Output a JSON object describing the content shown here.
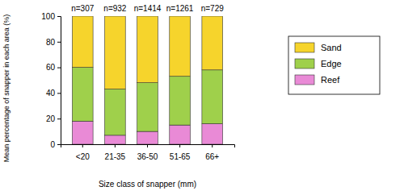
{
  "chart_data": {
    "type": "bar",
    "stacked": true,
    "x_label": "Size class of snapper (mm)",
    "y_label": "Mean percentage of snapper in each area (%)",
    "categories": [
      "<20",
      "21-35",
      "36-50",
      "51-65",
      "66+"
    ],
    "series": [
      {
        "name": "Reef",
        "color": "#e98ad6",
        "values": [
          18,
          7,
          10,
          15,
          16
        ]
      },
      {
        "name": "Edge",
        "color": "#9fd04b",
        "values": [
          42,
          36,
          38,
          38,
          42
        ]
      },
      {
        "name": "Sand",
        "color": "#f6d42c",
        "values": [
          40,
          57,
          52,
          47,
          42
        ]
      }
    ],
    "annotations": [
      "n=307",
      "n=932",
      "n=1414",
      "n=1261",
      "n=729"
    ],
    "ylim": [
      0,
      100
    ],
    "yticks": [
      0,
      20,
      40,
      60,
      80,
      100
    ],
    "grid": false,
    "legend": "right"
  }
}
